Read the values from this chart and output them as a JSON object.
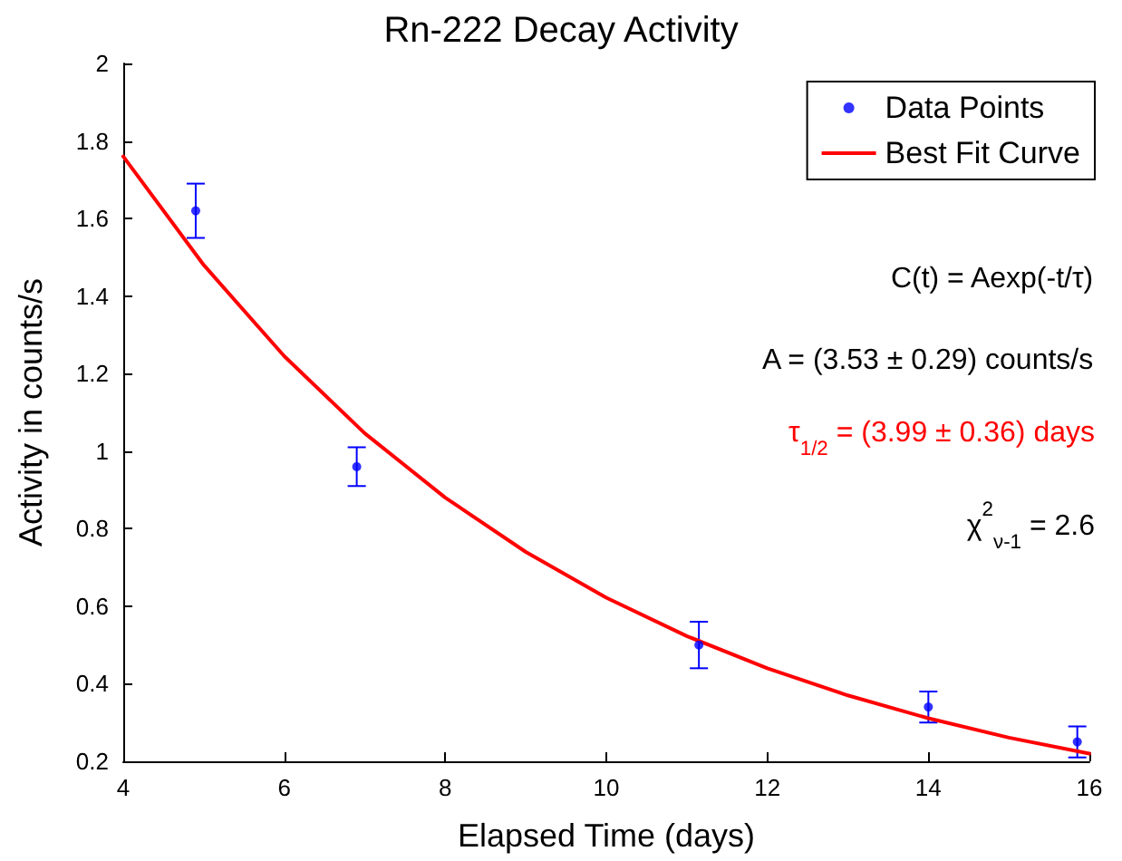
{
  "chart_data": {
    "type": "scatter",
    "title": "Rn-222 Decay Activity",
    "xlabel": "Elapsed Time (days)",
    "ylabel": "Activity in counts/s",
    "xlim": [
      4,
      16
    ],
    "xticks": [
      4,
      6,
      8,
      10,
      12,
      14,
      16
    ],
    "ylim": [
      0.2,
      2
    ],
    "yticks": [
      0.2,
      0.4,
      0.6,
      0.8,
      1,
      1.2,
      1.4,
      1.6,
      1.8,
      2
    ],
    "grid": false,
    "legend": "top right",
    "series": [
      {
        "name": "Data Points",
        "marker": "circle",
        "color": "#0000ff",
        "x": [
          4.9,
          6.9,
          11.15,
          14.0,
          15.85
        ],
        "values": [
          1.62,
          0.96,
          0.5,
          0.34,
          0.25
        ],
        "errors": [
          0.07,
          0.05,
          0.06,
          0.04,
          0.04
        ]
      },
      {
        "name": "Best Fit Curve",
        "type": "line",
        "marker": "none",
        "line_style": "solid",
        "color": "#ff0000",
        "x": [
          4,
          5,
          6,
          7,
          8,
          9,
          10,
          11,
          12,
          13,
          14,
          15,
          16
        ],
        "values": [
          1.76,
          1.48,
          1.245,
          1.046,
          0.88,
          0.74,
          0.622,
          0.523,
          0.44,
          0.37,
          0.311,
          0.261,
          0.22
        ]
      }
    ],
    "annotations": [
      "C(t) = Aexp(-t/τ)",
      "A = (3.53 ± 0.29) counts/s",
      "τ$_{1/2}$ = (3.99 ± 0.36) days",
      "χ$^{2}$$_{ν-1}$ = 2.6"
    ]
  }
}
